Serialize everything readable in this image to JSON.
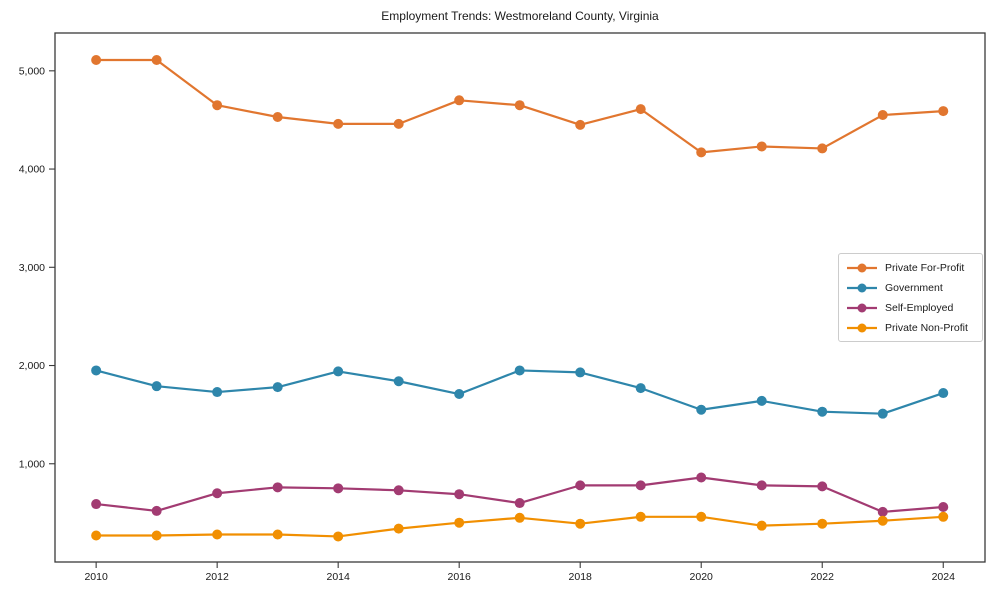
{
  "title": "Employment Trends: Westmoreland County, Virginia",
  "chart_data": {
    "type": "line",
    "title": "Employment Trends: Westmoreland County, Virginia",
    "xlabel": "",
    "ylabel": "",
    "grid": false,
    "legend_position": "right",
    "x": [
      2010,
      2011,
      2012,
      2013,
      2014,
      2015,
      2016,
      2017,
      2018,
      2019,
      2020,
      2021,
      2022,
      2023,
      2024
    ],
    "series": [
      {
        "name": "Private For-Profit",
        "color": "#E1762F",
        "values": [
          5110,
          5110,
          4650,
          4530,
          4460,
          4460,
          4700,
          4650,
          4450,
          4610,
          4170,
          4230,
          4210,
          4550,
          4590
        ]
      },
      {
        "name": "Government",
        "color": "#2E86AB",
        "values": [
          1950,
          1790,
          1730,
          1780,
          1940,
          1840,
          1710,
          1950,
          1930,
          1770,
          1550,
          1640,
          1530,
          1510,
          1720
        ]
      },
      {
        "name": "Self-Employed",
        "color": "#A23B72",
        "values": [
          590,
          520,
          700,
          760,
          750,
          730,
          690,
          600,
          780,
          780,
          860,
          780,
          770,
          510,
          560
        ]
      },
      {
        "name": "Private Non-Profit",
        "color": "#F18F01",
        "values": [
          270,
          270,
          280,
          280,
          260,
          340,
          400,
          450,
          390,
          460,
          460,
          370,
          390,
          420,
          460
        ]
      }
    ],
    "xticks": {
      "values": [
        2010,
        2012,
        2014,
        2016,
        2018,
        2020,
        2022,
        2024
      ],
      "labels": [
        "2010",
        "2012",
        "2014",
        "2016",
        "2018",
        "2020",
        "2022",
        "2024"
      ]
    },
    "yticks": {
      "values": [
        1000,
        2000,
        3000,
        4000,
        5000
      ],
      "labels": [
        "1,000",
        "2,000",
        "3,000",
        "4,000",
        "5,000"
      ]
    },
    "xlim": [
      2009.32,
      2024.69
    ],
    "ylim": [
      0,
      5385
    ]
  }
}
